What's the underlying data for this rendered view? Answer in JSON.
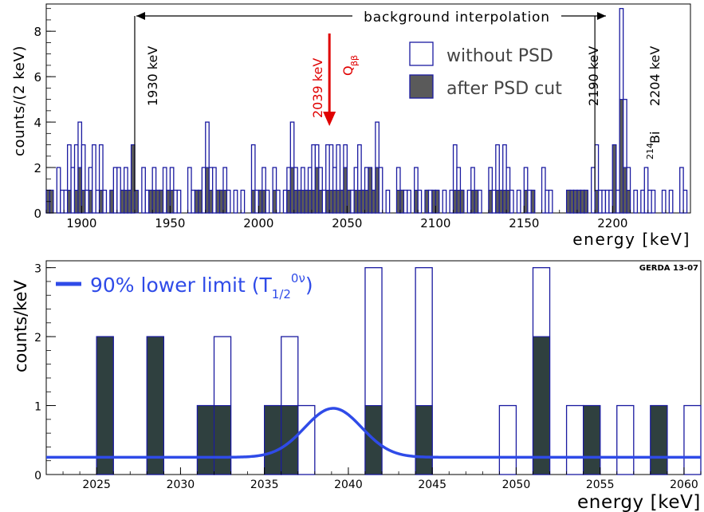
{
  "chart_data": [
    {
      "type": "bar",
      "xlabel": "energy  [keV]",
      "ylabel": "counts/(2 keV)",
      "xlim": [
        1880,
        2244
      ],
      "ylim": [
        0,
        9.2
      ],
      "bin_width": 2,
      "x_ticks": [
        1900,
        1950,
        2000,
        2050,
        2100,
        2150,
        2200
      ],
      "y_ticks": [
        0,
        2,
        4,
        6,
        8
      ],
      "legend": {
        "placement": "top-right",
        "entries": [
          {
            "label": "without PSD",
            "style": "open"
          },
          {
            "label": "after PSD cut",
            "style": "filled"
          }
        ]
      },
      "annotations": {
        "interval": {
          "label": "background interpolation",
          "from": 1930,
          "to": 2190
        },
        "lines": [
          {
            "energy": 1930,
            "label": "1930 keV"
          },
          {
            "energy": 2190,
            "label": "2190 keV"
          }
        ],
        "q_value": {
          "energy": 2039,
          "label": "2039 keV",
          "symbol": "Q",
          "subscript": "ββ",
          "color": "#e00000"
        },
        "peaks": [
          {
            "energy": 2204,
            "label": "2204 keV",
            "isotope_mass": "214",
            "isotope": "Bi"
          }
        ]
      },
      "series": [
        {
          "name": "without PSD",
          "bins": [
            [
              1880,
              1
            ],
            [
              1882,
              1
            ],
            [
              1886,
              2
            ],
            [
              1888,
              1
            ],
            [
              1890,
              1
            ],
            [
              1892,
              3
            ],
            [
              1894,
              2
            ],
            [
              1896,
              3
            ],
            [
              1898,
              4
            ],
            [
              1900,
              3
            ],
            [
              1902,
              1
            ],
            [
              1904,
              2
            ],
            [
              1906,
              3
            ],
            [
              1908,
              1
            ],
            [
              1910,
              3
            ],
            [
              1912,
              1
            ],
            [
              1916,
              1
            ],
            [
              1918,
              2
            ],
            [
              1920,
              2
            ],
            [
              1922,
              1
            ],
            [
              1924,
              2
            ],
            [
              1926,
              1
            ],
            [
              1928,
              3
            ],
            [
              1934,
              2
            ],
            [
              1936,
              1
            ],
            [
              1938,
              1
            ],
            [
              1940,
              2
            ],
            [
              1942,
              1
            ],
            [
              1944,
              1
            ],
            [
              1946,
              2
            ],
            [
              1948,
              1
            ],
            [
              1950,
              2
            ],
            [
              1952,
              1
            ],
            [
              1954,
              1
            ],
            [
              1960,
              2
            ],
            [
              1962,
              1
            ],
            [
              1964,
              1
            ],
            [
              1966,
              1
            ],
            [
              1968,
              2
            ],
            [
              1970,
              4
            ],
            [
              1972,
              2
            ],
            [
              1974,
              2
            ],
            [
              1976,
              1
            ],
            [
              1978,
              1
            ],
            [
              1980,
              2
            ],
            [
              1982,
              1
            ],
            [
              1986,
              1
            ],
            [
              1990,
              1
            ],
            [
              1996,
              3
            ],
            [
              1998,
              1
            ],
            [
              2000,
              1
            ],
            [
              2002,
              2
            ],
            [
              2004,
              1
            ],
            [
              2008,
              2
            ],
            [
              2010,
              1
            ],
            [
              2014,
              1
            ],
            [
              2016,
              2
            ],
            [
              2018,
              4
            ],
            [
              2020,
              2
            ],
            [
              2022,
              1
            ],
            [
              2024,
              2
            ],
            [
              2026,
              1
            ],
            [
              2028,
              2
            ],
            [
              2030,
              3
            ],
            [
              2032,
              3
            ],
            [
              2034,
              2
            ],
            [
              2036,
              1
            ],
            [
              2038,
              3
            ],
            [
              2040,
              3
            ],
            [
              2042,
              2
            ],
            [
              2044,
              3
            ],
            [
              2046,
              1
            ],
            [
              2048,
              3
            ],
            [
              2050,
              1
            ],
            [
              2052,
              1
            ],
            [
              2054,
              2
            ],
            [
              2056,
              3
            ],
            [
              2058,
              1
            ],
            [
              2060,
              2
            ],
            [
              2062,
              2
            ],
            [
              2064,
              1
            ],
            [
              2066,
              4
            ],
            [
              2068,
              2
            ],
            [
              2072,
              1
            ],
            [
              2078,
              2
            ],
            [
              2080,
              1
            ],
            [
              2082,
              1
            ],
            [
              2084,
              1
            ],
            [
              2088,
              2
            ],
            [
              2090,
              1
            ],
            [
              2094,
              1
            ],
            [
              2096,
              1
            ],
            [
              2098,
              1
            ],
            [
              2100,
              1
            ],
            [
              2104,
              1
            ],
            [
              2108,
              1
            ],
            [
              2110,
              3
            ],
            [
              2112,
              2
            ],
            [
              2114,
              1
            ],
            [
              2118,
              1
            ],
            [
              2120,
              2
            ],
            [
              2122,
              1
            ],
            [
              2124,
              1
            ],
            [
              2130,
              2
            ],
            [
              2132,
              1
            ],
            [
              2134,
              3
            ],
            [
              2136,
              1
            ],
            [
              2138,
              3
            ],
            [
              2140,
              2
            ],
            [
              2142,
              1
            ],
            [
              2146,
              1
            ],
            [
              2150,
              2
            ],
            [
              2152,
              1
            ],
            [
              2154,
              1
            ],
            [
              2160,
              2
            ],
            [
              2162,
              1
            ],
            [
              2164,
              1
            ],
            [
              2174,
              1
            ],
            [
              2176,
              1
            ],
            [
              2178,
              1
            ],
            [
              2180,
              1
            ],
            [
              2182,
              1
            ],
            [
              2184,
              1
            ],
            [
              2188,
              2
            ],
            [
              2190,
              3
            ],
            [
              2192,
              1
            ],
            [
              2194,
              1
            ],
            [
              2196,
              1
            ],
            [
              2198,
              1
            ],
            [
              2200,
              3
            ],
            [
              2202,
              1
            ],
            [
              2204,
              9
            ],
            [
              2206,
              5
            ],
            [
              2208,
              2
            ],
            [
              2212,
              1
            ],
            [
              2216,
              1
            ],
            [
              2218,
              2
            ],
            [
              2220,
              1
            ],
            [
              2222,
              1
            ],
            [
              2228,
              1
            ],
            [
              2232,
              1
            ],
            [
              2238,
              2
            ],
            [
              2240,
              1
            ]
          ]
        },
        {
          "name": "after PSD cut",
          "bins": [
            [
              1880,
              1
            ],
            [
              1882,
              1
            ],
            [
              1892,
              1
            ],
            [
              1896,
              1
            ],
            [
              1898,
              2
            ],
            [
              1900,
              1
            ],
            [
              1904,
              1
            ],
            [
              1910,
              1
            ],
            [
              1916,
              1
            ],
            [
              1922,
              1
            ],
            [
              1924,
              1
            ],
            [
              1926,
              1
            ],
            [
              1928,
              3
            ],
            [
              1930,
              1
            ],
            [
              1938,
              1
            ],
            [
              1940,
              1
            ],
            [
              1942,
              1
            ],
            [
              1944,
              1
            ],
            [
              1948,
              1
            ],
            [
              1950,
              1
            ],
            [
              1964,
              1
            ],
            [
              1966,
              1
            ],
            [
              1970,
              2
            ],
            [
              1972,
              1
            ],
            [
              1976,
              1
            ],
            [
              1978,
              1
            ],
            [
              1980,
              1
            ],
            [
              1996,
              1
            ],
            [
              2000,
              1
            ],
            [
              2002,
              1
            ],
            [
              2008,
              1
            ],
            [
              2016,
              1
            ],
            [
              2018,
              2
            ],
            [
              2020,
              1
            ],
            [
              2022,
              1
            ],
            [
              2024,
              1
            ],
            [
              2026,
              1
            ],
            [
              2028,
              1
            ],
            [
              2030,
              1
            ],
            [
              2032,
              2
            ],
            [
              2034,
              1
            ],
            [
              2038,
              1
            ],
            [
              2040,
              1
            ],
            [
              2042,
              1
            ],
            [
              2044,
              1
            ],
            [
              2046,
              1
            ],
            [
              2048,
              2
            ],
            [
              2050,
              1
            ],
            [
              2054,
              1
            ],
            [
              2056,
              1
            ],
            [
              2058,
              1
            ],
            [
              2060,
              1
            ],
            [
              2062,
              2
            ],
            [
              2064,
              1
            ],
            [
              2066,
              2
            ],
            [
              2078,
              1
            ],
            [
              2080,
              1
            ],
            [
              2088,
              1
            ],
            [
              2094,
              1
            ],
            [
              2098,
              1
            ],
            [
              2100,
              1
            ],
            [
              2110,
              1
            ],
            [
              2112,
              1
            ],
            [
              2114,
              1
            ],
            [
              2120,
              1
            ],
            [
              2122,
              1
            ],
            [
              2130,
              1
            ],
            [
              2134,
              1
            ],
            [
              2136,
              1
            ],
            [
              2138,
              1
            ],
            [
              2140,
              1
            ],
            [
              2150,
              1
            ],
            [
              2154,
              1
            ],
            [
              2174,
              1
            ],
            [
              2176,
              1
            ],
            [
              2178,
              1
            ],
            [
              2180,
              1
            ],
            [
              2182,
              1
            ],
            [
              2184,
              1
            ],
            [
              2190,
              1
            ],
            [
              2200,
              3
            ],
            [
              2204,
              5
            ],
            [
              2206,
              2
            ],
            [
              2208,
              1
            ]
          ]
        }
      ]
    },
    {
      "type": "bar",
      "xlabel": "energy  [keV]",
      "ylabel": "counts/keV",
      "xlim": [
        2022,
        2061
      ],
      "ylim": [
        0,
        3.1
      ],
      "bin_width": 1,
      "x_ticks": [
        2025,
        2030,
        2035,
        2040,
        2045,
        2050,
        2055,
        2060
      ],
      "y_ticks": [
        0,
        1,
        2,
        3
      ],
      "corner_label": "GERDA 13-07",
      "legend": {
        "placement": "top-left",
        "entries": [
          {
            "label": "90% lower limit (T",
            "sub": "1/2",
            "sup": "0ν",
            "tail": ")",
            "color": "#2f4be8"
          }
        ]
      },
      "series": [
        {
          "name": "without PSD",
          "bins": [
            [
              2025,
              2
            ],
            [
              2028,
              2
            ],
            [
              2031,
              1
            ],
            [
              2032,
              2
            ],
            [
              2035,
              1
            ],
            [
              2036,
              2
            ],
            [
              2037,
              1
            ],
            [
              2041,
              3
            ],
            [
              2044,
              3
            ],
            [
              2049,
              1
            ],
            [
              2051,
              3
            ],
            [
              2053,
              1
            ],
            [
              2054,
              1
            ],
            [
              2056,
              1
            ],
            [
              2058,
              1
            ],
            [
              2060,
              1
            ]
          ]
        },
        {
          "name": "after PSD cut",
          "bins": [
            [
              2025,
              2
            ],
            [
              2028,
              2
            ],
            [
              2031,
              1
            ],
            [
              2032,
              1
            ],
            [
              2035,
              1
            ],
            [
              2036,
              1
            ],
            [
              2041,
              1
            ],
            [
              2044,
              1
            ],
            [
              2051,
              2
            ],
            [
              2054,
              1
            ],
            [
              2058,
              1
            ]
          ]
        }
      ],
      "curve": {
        "name": "90% lower limit (T1/2 0ν)",
        "baseline": 0.25,
        "amplitude": 0.71,
        "mean": 2039.1,
        "sigma": 1.7,
        "color": "#2f4be8"
      }
    }
  ],
  "colors": {
    "outline": "#1a1aa0",
    "fill_top": "#5a5a5a",
    "fill_bottom": "#2f403f",
    "curve": "#2f4be8",
    "q_arrow": "#e00000"
  }
}
